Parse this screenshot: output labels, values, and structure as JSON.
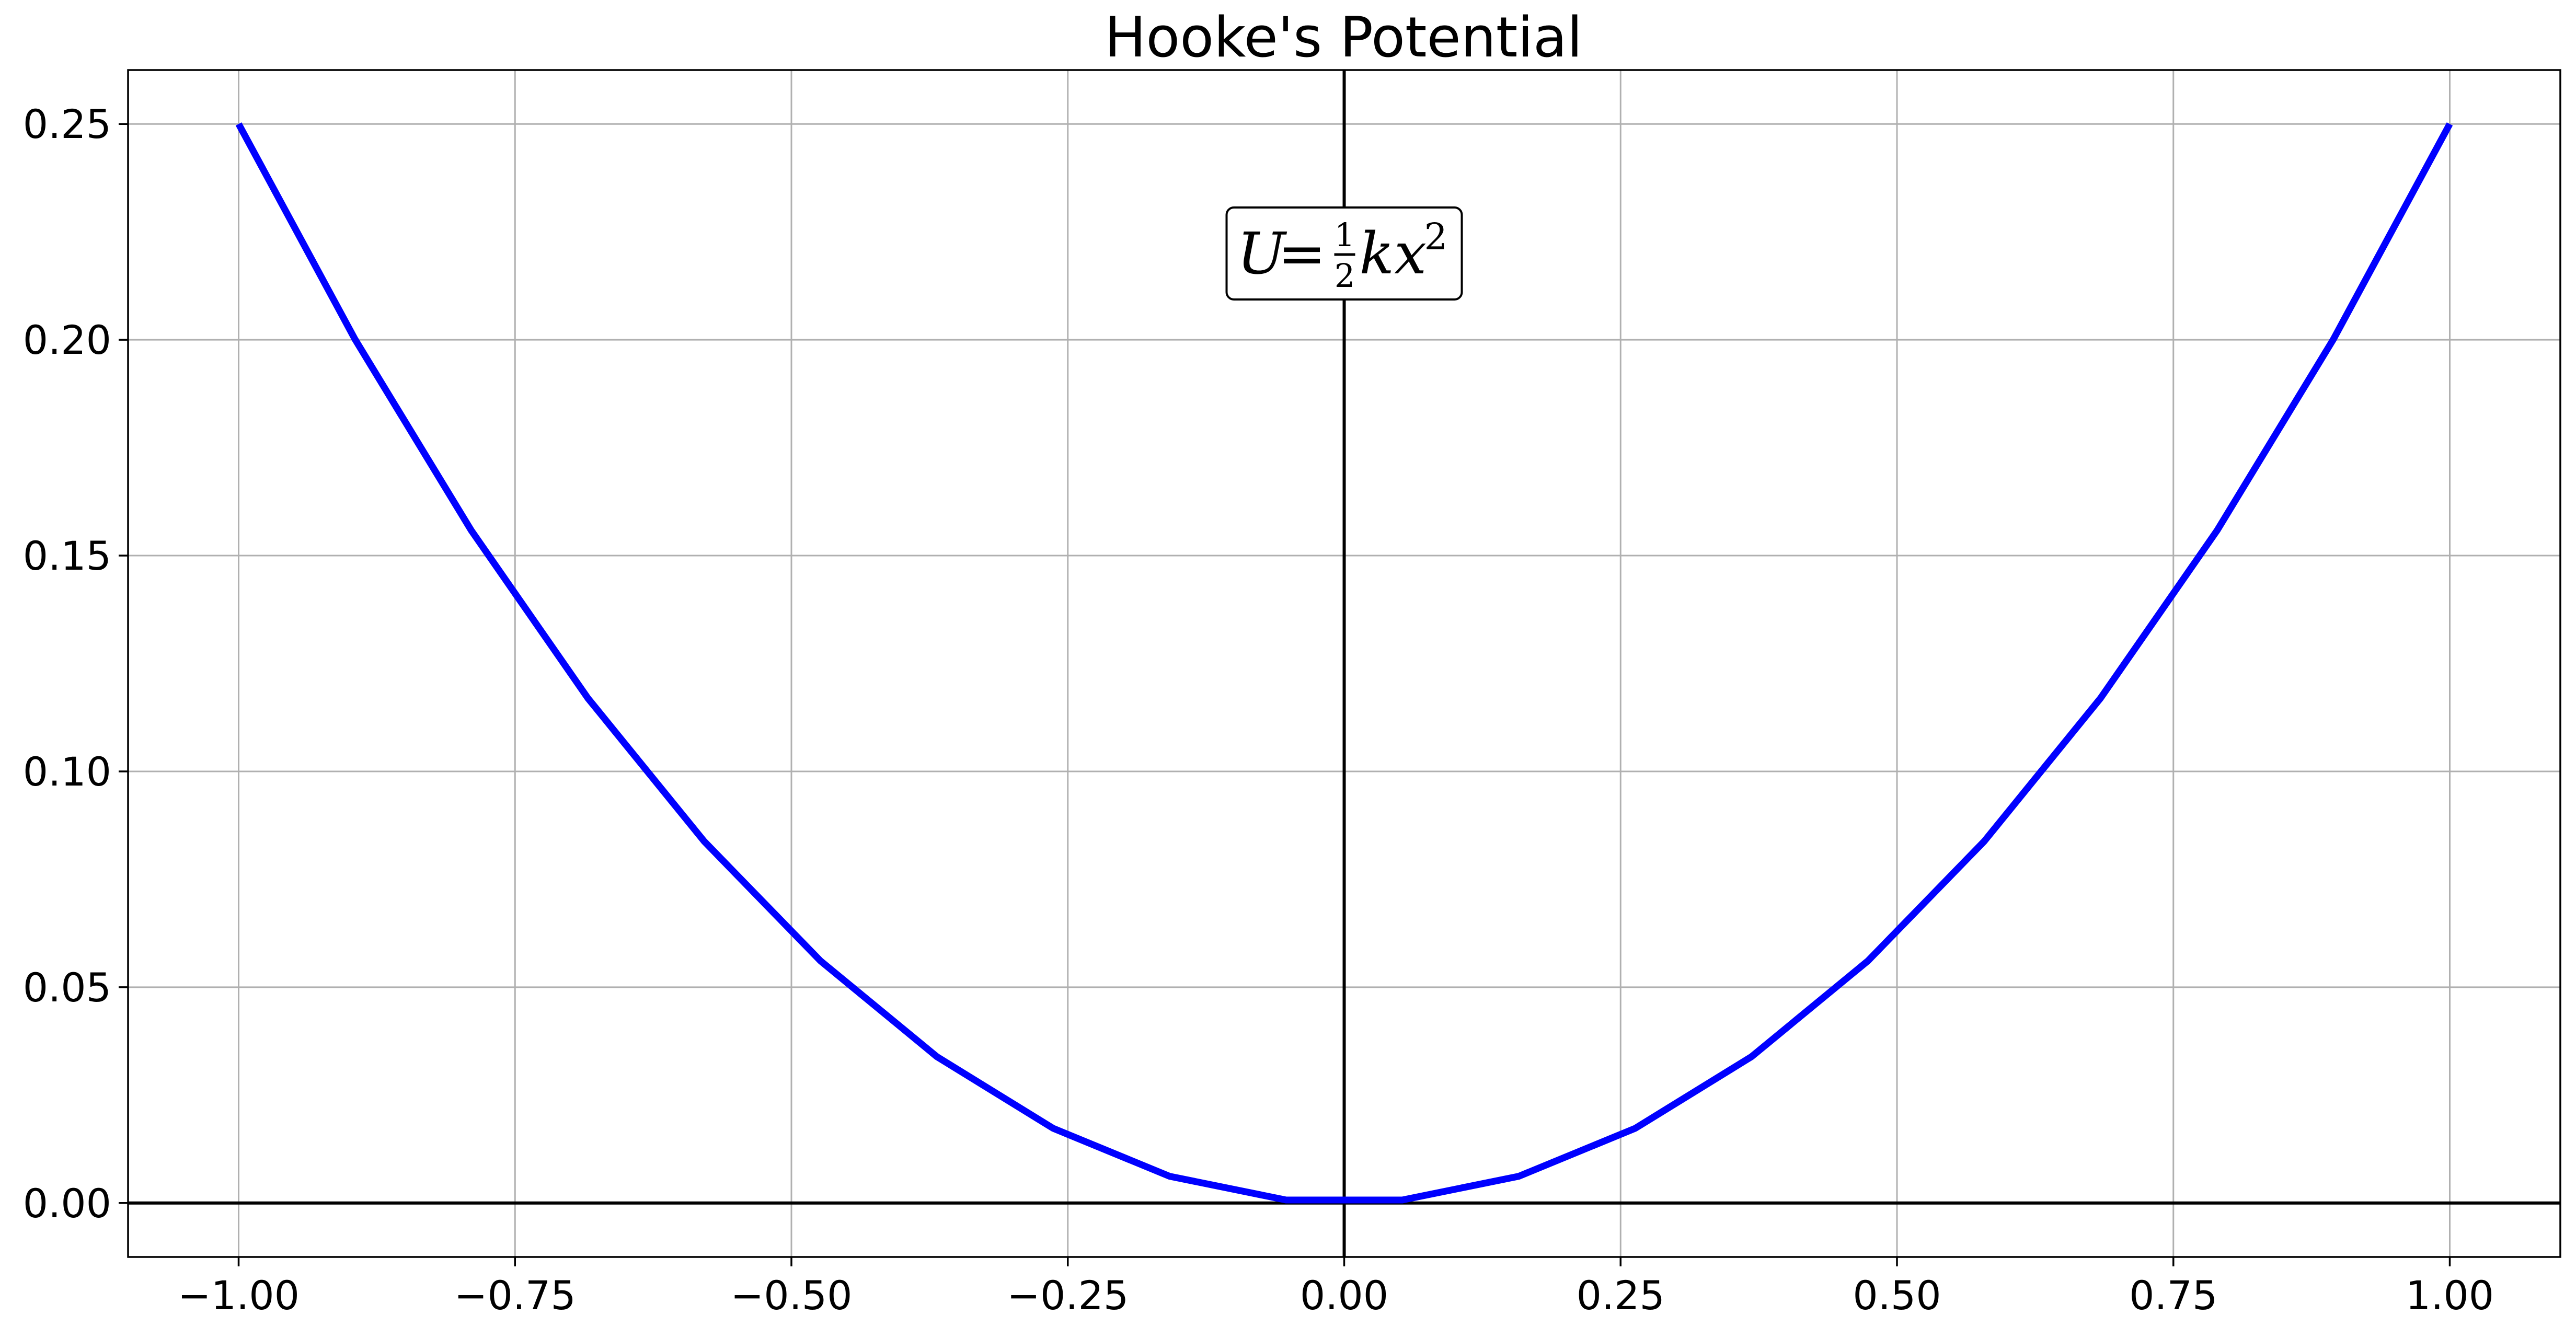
{
  "chart_data": {
    "type": "line",
    "title": "Hooke's Potential",
    "xlabel": "",
    "ylabel": "",
    "xlim": [
      -1.1,
      1.1
    ],
    "ylim": [
      -0.0125,
      0.2625
    ],
    "grid": true,
    "x_ticks": [
      -1.0,
      -0.75,
      -0.5,
      -0.25,
      0.0,
      0.25,
      0.5,
      0.75,
      1.0
    ],
    "x_tick_labels": [
      "−1.00",
      "−0.75",
      "−0.50",
      "−0.25",
      "0.00",
      "0.25",
      "0.50",
      "0.75",
      "1.00"
    ],
    "y_ticks": [
      0.0,
      0.05,
      0.1,
      0.15,
      0.2,
      0.25
    ],
    "y_tick_labels": [
      "0.00",
      "0.05",
      "0.10",
      "0.15",
      "0.20",
      "0.25"
    ],
    "reference_lines": {
      "axhline_y": 0.0,
      "axvline_x": 0.0,
      "color": "#000000"
    },
    "series": [
      {
        "color": "#0000ff",
        "x": [
          -1.0,
          -0.8947,
          -0.7895,
          -0.6842,
          -0.5789,
          -0.4737,
          -0.3684,
          -0.2632,
          -0.1579,
          -0.0526,
          0.0526,
          0.1579,
          0.2632,
          0.3684,
          0.4737,
          0.5789,
          0.6842,
          0.7895,
          0.8947,
          1.0
        ],
        "y": [
          0.25,
          0.2001,
          0.1558,
          0.117,
          0.0838,
          0.0561,
          0.0339,
          0.0173,
          0.0062,
          0.0007,
          0.0007,
          0.0062,
          0.0173,
          0.0339,
          0.0561,
          0.0838,
          0.117,
          0.1558,
          0.2001,
          0.25
        ]
      }
    ],
    "annotation": {
      "x": 0.0,
      "y": 0.22,
      "var": "U",
      "equals": " = ",
      "frac_num": "1",
      "frac_den": "2",
      "body": "kx",
      "sup": "2"
    }
  }
}
